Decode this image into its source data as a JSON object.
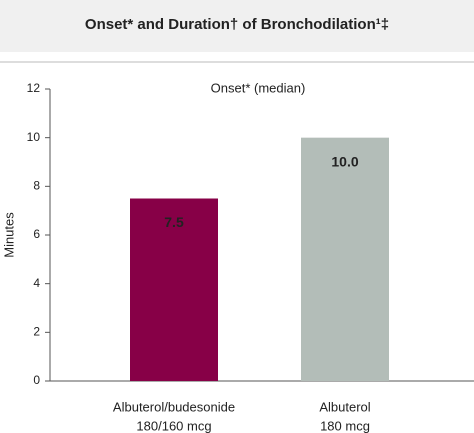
{
  "chart_data": {
    "type": "bar",
    "title": "Onset* and Duration† of Bronchodilation¹‡",
    "subtitle": "Onset* (median)",
    "y_label": "Minutes",
    "categories": [
      [
        "Albuterol/budesonide",
        "180/160 mcg"
      ],
      [
        "Albuterol",
        "180 mcg"
      ]
    ],
    "values": [
      7.5,
      10.0
    ],
    "value_labels": [
      "7.5",
      "10.0"
    ],
    "colors": [
      "#870047",
      "#b3bdb8"
    ],
    "label_colors": [
      "#ffffff",
      "#333333"
    ],
    "ylim": [
      0,
      12
    ],
    "yticks": [
      0,
      2,
      4,
      6,
      8,
      10,
      12
    ],
    "grid": false
  }
}
